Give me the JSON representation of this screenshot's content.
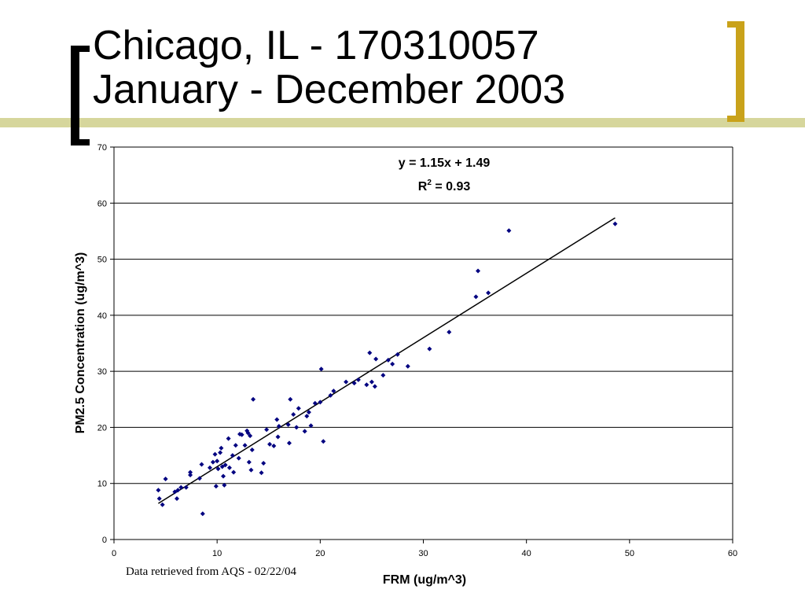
{
  "slide": {
    "title_line1": "Chicago, IL - 170310057",
    "title_line2": "January - December 2003",
    "footnote": "Data retrieved from AQS - 02/22/04",
    "bracket_left_color": "#000000",
    "bracket_right_color": "#c9a21a",
    "accent_line_color": "#d6d69c"
  },
  "chart_data": {
    "type": "scatter",
    "xlabel": "FRM (ug/m^3)",
    "ylabel": "PM2.5 Concentration (ug/m^3)",
    "xlim": [
      0,
      60
    ],
    "ylim": [
      0,
      70
    ],
    "xticks": [
      0,
      10,
      20,
      30,
      40,
      50,
      60
    ],
    "yticks": [
      0,
      10,
      20,
      30,
      40,
      50,
      60,
      70
    ],
    "grid": "horizontal",
    "marker_color": "#000080",
    "trendline": {
      "slope": 1.15,
      "intercept": 1.49,
      "x_range": [
        4.3,
        48.6
      ]
    },
    "equation_text": "y = 1.15x + 1.49",
    "r2_text_prefix": "R",
    "r2_text_sup": "2",
    "r2_text_suffix": " = 0.93",
    "points": [
      [
        4.3,
        8.8
      ],
      [
        4.4,
        7.3
      ],
      [
        4.7,
        6.2
      ],
      [
        5.0,
        10.8
      ],
      [
        5.9,
        8.5
      ],
      [
        6.1,
        7.3
      ],
      [
        6.2,
        8.8
      ],
      [
        6.5,
        9.3
      ],
      [
        7.0,
        9.3
      ],
      [
        7.4,
        12.0
      ],
      [
        7.4,
        11.5
      ],
      [
        8.3,
        10.9
      ],
      [
        8.6,
        4.6
      ],
      [
        8.5,
        13.4
      ],
      [
        9.3,
        12.8
      ],
      [
        9.6,
        13.8
      ],
      [
        9.8,
        15.2
      ],
      [
        9.9,
        9.5
      ],
      [
        10.0,
        14.0
      ],
      [
        10.1,
        12.6
      ],
      [
        10.3,
        15.5
      ],
      [
        10.4,
        16.3
      ],
      [
        10.5,
        13.0
      ],
      [
        10.6,
        11.3
      ],
      [
        10.7,
        9.7
      ],
      [
        10.8,
        13.3
      ],
      [
        11.1,
        18.0
      ],
      [
        11.2,
        12.8
      ],
      [
        11.5,
        15.0
      ],
      [
        11.6,
        12.0
      ],
      [
        11.8,
        16.8
      ],
      [
        12.1,
        14.5
      ],
      [
        12.2,
        18.8
      ],
      [
        12.4,
        18.7
      ],
      [
        12.7,
        16.8
      ],
      [
        12.9,
        19.4
      ],
      [
        13.0,
        19.0
      ],
      [
        13.1,
        13.8
      ],
      [
        13.2,
        18.5
      ],
      [
        13.3,
        12.4
      ],
      [
        13.4,
        16.0
      ],
      [
        13.5,
        25.0
      ],
      [
        14.3,
        11.9
      ],
      [
        14.5,
        13.6
      ],
      [
        14.8,
        19.6
      ],
      [
        15.1,
        17.0
      ],
      [
        15.5,
        16.7
      ],
      [
        15.8,
        21.4
      ],
      [
        15.9,
        18.3
      ],
      [
        16.0,
        20.2
      ],
      [
        16.9,
        20.5
      ],
      [
        17.0,
        17.2
      ],
      [
        17.1,
        25.0
      ],
      [
        17.4,
        22.3
      ],
      [
        17.7,
        20.0
      ],
      [
        17.9,
        23.4
      ],
      [
        18.5,
        19.3
      ],
      [
        18.7,
        22.0
      ],
      [
        18.9,
        22.7
      ],
      [
        19.1,
        20.3
      ],
      [
        19.5,
        24.3
      ],
      [
        20.0,
        24.5
      ],
      [
        20.1,
        30.4
      ],
      [
        20.3,
        17.5
      ],
      [
        21.0,
        25.7
      ],
      [
        21.3,
        26.5
      ],
      [
        22.5,
        28.1
      ],
      [
        23.3,
        27.9
      ],
      [
        23.7,
        28.5
      ],
      [
        24.5,
        27.6
      ],
      [
        24.8,
        33.3
      ],
      [
        25.0,
        28.1
      ],
      [
        25.3,
        27.3
      ],
      [
        25.4,
        32.2
      ],
      [
        26.1,
        29.3
      ],
      [
        26.6,
        32.0
      ],
      [
        27.0,
        31.3
      ],
      [
        27.5,
        33.0
      ],
      [
        28.5,
        30.9
      ],
      [
        30.6,
        34.0
      ],
      [
        32.5,
        37.0
      ],
      [
        35.1,
        43.3
      ],
      [
        35.3,
        47.9
      ],
      [
        36.3,
        44.0
      ],
      [
        38.3,
        55.1
      ],
      [
        48.6,
        56.3
      ]
    ]
  }
}
